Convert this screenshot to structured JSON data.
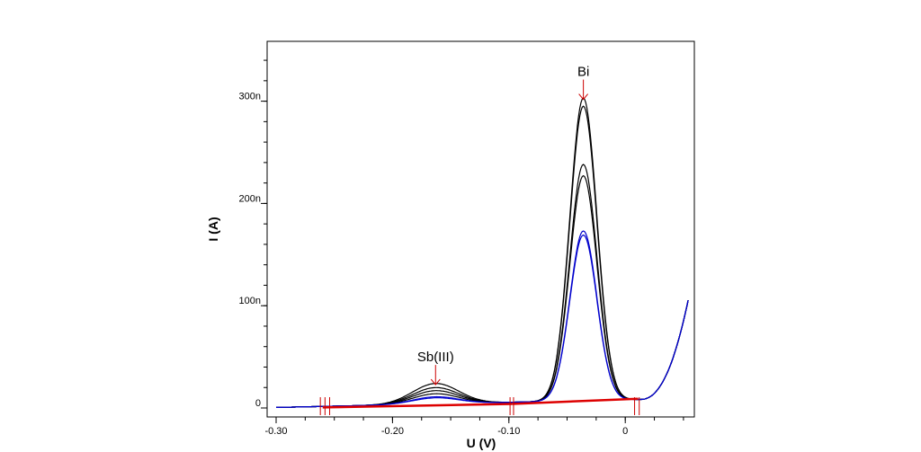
{
  "chart_data": {
    "type": "line",
    "title": "",
    "xlabel": "U (V)",
    "ylabel": "I (A)",
    "xlim": [
      -0.305,
      0.06
    ],
    "ylim": [
      -5,
      350
    ],
    "x_ticks": [
      {
        "value": -0.3,
        "label": "-0.30"
      },
      {
        "value": -0.2,
        "label": "-0.20"
      },
      {
        "value": -0.1,
        "label": "-0.10"
      },
      {
        "value": 0.0,
        "label": "0"
      }
    ],
    "y_ticks": [
      {
        "value": 0,
        "label": "0"
      },
      {
        "value": 100,
        "label": "100n"
      },
      {
        "value": 200,
        "label": "200n"
      },
      {
        "value": 300,
        "label": "300n"
      }
    ],
    "grid": false,
    "legend": "none",
    "baseline_sb": {
      "x1": -0.26,
      "y1": 0.5,
      "x2": -0.097,
      "y2": 4.0
    },
    "baseline_bi": {
      "x1": -0.097,
      "y1": 4.0,
      "x2": 0.011,
      "y2": 9.0
    },
    "markers": [
      {
        "x": -0.262
      },
      {
        "x": -0.258
      },
      {
        "x": -0.254
      },
      {
        "x": -0.099
      },
      {
        "x": -0.096
      },
      {
        "x": 0.008
      },
      {
        "x": 0.012
      }
    ],
    "series": [
      {
        "color": "#000000",
        "sb": 20,
        "bi": 296
      },
      {
        "color": "#000000",
        "sb": 16,
        "bi": 288
      },
      {
        "color": "#000000",
        "sb": 13,
        "bi": 231
      },
      {
        "color": "#000000",
        "sb": 10,
        "bi": 220
      },
      {
        "color": "#0000cc",
        "sb": 7,
        "bi": 166
      },
      {
        "color": "#0000cc",
        "sb": 6,
        "bi": 162
      }
    ],
    "annotations": [
      {
        "text": "Bi",
        "x": -0.036,
        "y": 300
      },
      {
        "text": "Sb(III)",
        "x": -0.163,
        "y": 21
      }
    ]
  },
  "colors": {
    "axis": "#000000",
    "baseline": "#dd0000",
    "marker": "#cc0000"
  }
}
